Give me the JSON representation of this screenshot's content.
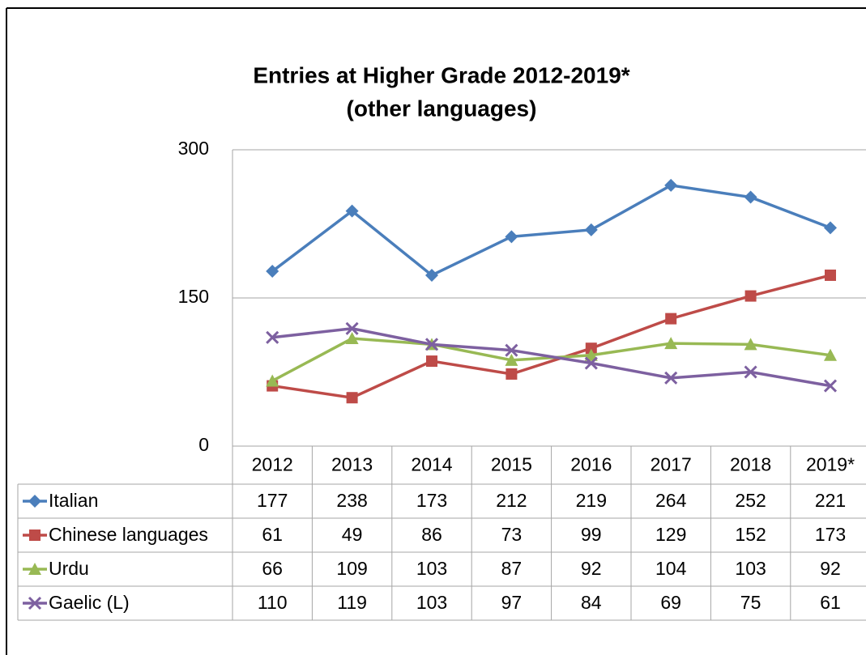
{
  "chart_data": {
    "type": "line",
    "title": "Entries at Higher Grade 2012-2019*",
    "subtitle": "(other languages)",
    "categories": [
      "2012",
      "2013",
      "2014",
      "2015",
      "2016",
      "2017",
      "2018",
      "2019*"
    ],
    "series": [
      {
        "name": "Italian",
        "color": "#4a7ebb",
        "marker": "diamond",
        "values": [
          177,
          238,
          173,
          212,
          219,
          264,
          252,
          221
        ]
      },
      {
        "name": "Chinese languages",
        "color": "#be4b48",
        "marker": "square",
        "values": [
          61,
          49,
          86,
          73,
          99,
          129,
          152,
          173
        ]
      },
      {
        "name": "Urdu",
        "color": "#98b954",
        "marker": "triangle",
        "values": [
          66,
          109,
          103,
          87,
          92,
          104,
          103,
          92
        ]
      },
      {
        "name": "Gaelic (L)",
        "color": "#7d60a0",
        "marker": "x",
        "values": [
          110,
          119,
          103,
          97,
          84,
          69,
          75,
          61
        ]
      }
    ],
    "ylim": [
      0,
      300
    ],
    "yticks": [
      0,
      150,
      300
    ],
    "grid": true,
    "data_table": true
  }
}
